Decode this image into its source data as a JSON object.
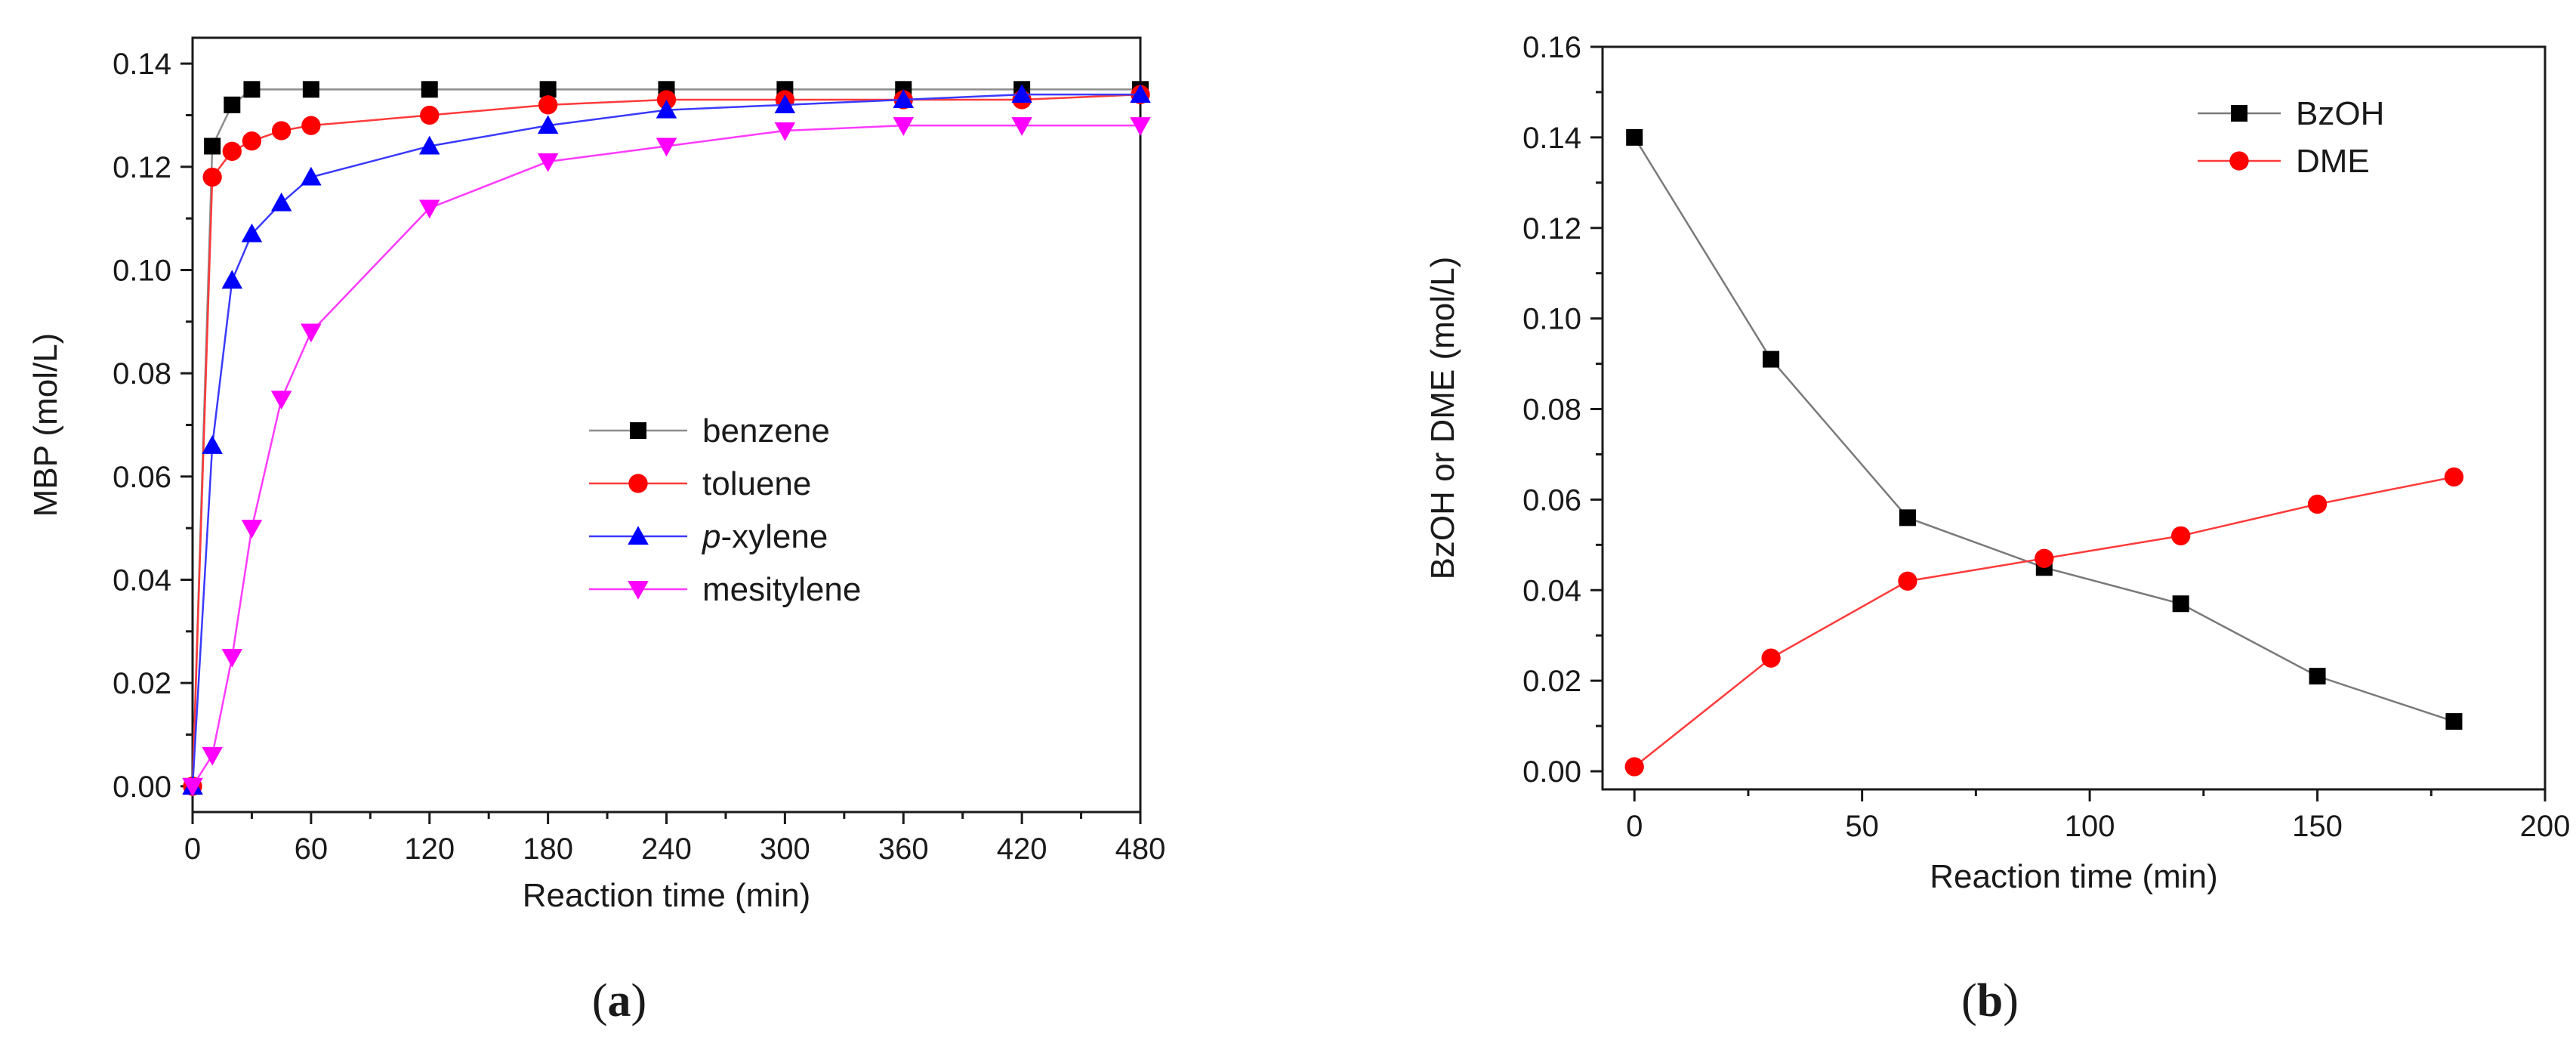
{
  "chart_data": [
    {
      "type": "line",
      "panel_label": "a",
      "title": "",
      "xlabel": "Reaction time (min)",
      "ylabel": "MBP (mol/L)",
      "xlim": [
        0,
        480
      ],
      "ylim": [
        -0.005,
        0.145
      ],
      "xticks": [
        0,
        60,
        120,
        180,
        240,
        300,
        360,
        420,
        480
      ],
      "yticks": [
        0.0,
        0.02,
        0.04,
        0.06,
        0.08,
        0.1,
        0.12,
        0.14
      ],
      "grid": false,
      "legend_position": "center-right",
      "series": [
        {
          "name": "benzene",
          "italic_prefix": "",
          "color": "#000000",
          "line_color": "#8c8c8c",
          "marker": "square",
          "x": [
            0,
            10,
            20,
            30,
            60,
            120,
            180,
            240,
            300,
            360,
            420,
            480
          ],
          "y": [
            0.0,
            0.124,
            0.132,
            0.135,
            0.135,
            0.135,
            0.135,
            0.135,
            0.135,
            0.135,
            0.135,
            0.135
          ]
        },
        {
          "name": "toluene",
          "italic_prefix": "",
          "color": "#ff0000",
          "line_color": "#ff3a3a",
          "marker": "circle",
          "x": [
            0,
            10,
            20,
            30,
            45,
            60,
            120,
            180,
            240,
            300,
            360,
            420,
            480
          ],
          "y": [
            0.0,
            0.118,
            0.123,
            0.125,
            0.127,
            0.128,
            0.13,
            0.132,
            0.133,
            0.133,
            0.133,
            0.133,
            0.134
          ]
        },
        {
          "name": "-xylene",
          "italic_prefix": "p",
          "color": "#0000ff",
          "line_color": "#3a3aff",
          "marker": "triangle-up",
          "x": [
            0,
            10,
            20,
            30,
            45,
            60,
            120,
            180,
            240,
            300,
            360,
            420,
            480
          ],
          "y": [
            0.0,
            0.066,
            0.098,
            0.107,
            0.113,
            0.118,
            0.124,
            0.128,
            0.131,
            0.132,
            0.133,
            0.134,
            0.134
          ]
        },
        {
          "name": "mesitylene",
          "italic_prefix": "",
          "color": "#ff00ff",
          "line_color": "#ff3aff",
          "marker": "triangle-down",
          "x": [
            0,
            10,
            20,
            30,
            45,
            60,
            120,
            180,
            240,
            300,
            360,
            420,
            480
          ],
          "y": [
            0.0,
            0.006,
            0.025,
            0.05,
            0.075,
            0.088,
            0.112,
            0.121,
            0.124,
            0.127,
            0.128,
            0.128,
            0.128
          ]
        }
      ]
    },
    {
      "type": "line",
      "panel_label": "b",
      "title": "",
      "xlabel": "Reaction time (min)",
      "ylabel": "BzOH or DME (mol/L)",
      "xlim": [
        -7,
        200
      ],
      "ylim": [
        -0.004,
        0.16
      ],
      "xticks": [
        0,
        50,
        100,
        150,
        200
      ],
      "yticks": [
        0.0,
        0.02,
        0.04,
        0.06,
        0.08,
        0.1,
        0.12,
        0.14,
        0.16
      ],
      "grid": false,
      "legend_position": "top-right",
      "series": [
        {
          "name": "BzOH",
          "italic_prefix": "",
          "color": "#000000",
          "line_color": "#7a7a7a",
          "marker": "square",
          "x": [
            0,
            30,
            60,
            90,
            120,
            150,
            180
          ],
          "y": [
            0.14,
            0.091,
            0.056,
            0.045,
            0.037,
            0.021,
            0.011
          ]
        },
        {
          "name": "DME",
          "italic_prefix": "",
          "color": "#ff0000",
          "line_color": "#ff3a3a",
          "marker": "circle",
          "x": [
            0,
            30,
            60,
            90,
            120,
            150,
            180
          ],
          "y": [
            0.001,
            0.025,
            0.042,
            0.047,
            0.052,
            0.059,
            0.065
          ]
        }
      ]
    }
  ]
}
